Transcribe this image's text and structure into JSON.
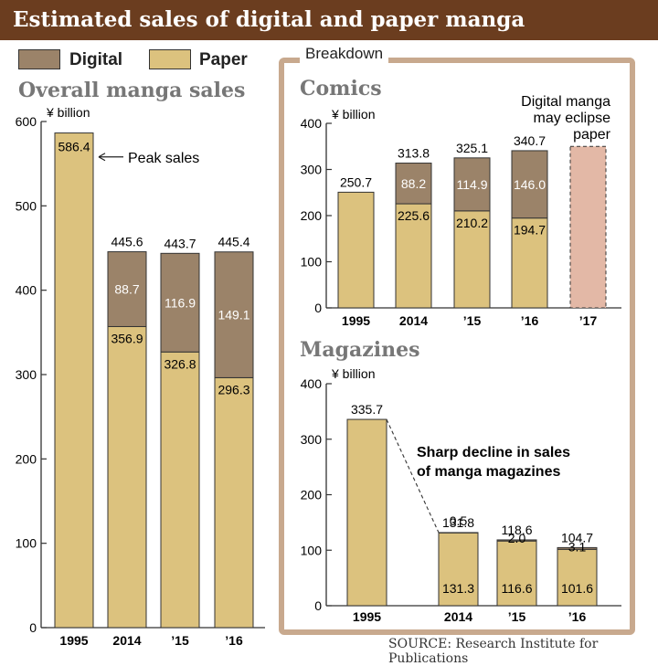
{
  "title": "Estimated sales of digital and paper manga",
  "legend": [
    {
      "label": "Digital",
      "color": "#9b8369"
    },
    {
      "label": "Paper",
      "color": "#dcc27e"
    }
  ],
  "breakdown_label": "Breakdown",
  "source": "SOURCE: Research Institute for Publications",
  "colors": {
    "digital": "#9b8369",
    "paper": "#dcc27e",
    "forecast": "#e3b8a6",
    "frame": "#c8a98e"
  },
  "chart_data": [
    {
      "id": "overall",
      "type": "bar",
      "title": "Overall manga sales",
      "ylabel": "¥ billion",
      "ylim": [
        0,
        600
      ],
      "yticks": [
        0,
        100,
        200,
        300,
        400,
        500,
        600
      ],
      "categories": [
        "1995",
        "2014",
        "’15",
        "’16"
      ],
      "series": [
        {
          "name": "Paper",
          "values": [
            586.4,
            356.9,
            326.8,
            296.3
          ]
        },
        {
          "name": "Digital",
          "values": [
            null,
            88.7,
            116.9,
            149.1
          ]
        }
      ],
      "totals": [
        null,
        445.6,
        443.7,
        445.4
      ],
      "annotations": [
        "Peak sales"
      ]
    },
    {
      "id": "comics",
      "type": "bar",
      "title": "Comics",
      "ylabel": "¥ billion",
      "ylim": [
        0,
        400
      ],
      "yticks": [
        0,
        100,
        200,
        300,
        400
      ],
      "categories": [
        "1995",
        "2014",
        "’15",
        "’16",
        "’17"
      ],
      "series": [
        {
          "name": "Paper",
          "values": [
            250.7,
            225.6,
            210.2,
            194.7,
            null
          ]
        },
        {
          "name": "Digital",
          "values": [
            null,
            88.2,
            114.9,
            146.0,
            null
          ]
        }
      ],
      "totals": [
        null,
        313.8,
        325.1,
        340.7,
        null
      ],
      "forecast": {
        "category": "’17",
        "value": 350
      },
      "annotations": [
        "Digital manga",
        "may eclipse",
        "paper"
      ]
    },
    {
      "id": "magazines",
      "type": "bar",
      "title": "Magazines",
      "ylabel": "¥ billion",
      "ylim": [
        0,
        400
      ],
      "yticks": [
        0,
        100,
        200,
        300,
        400
      ],
      "categories": [
        "1995",
        "2014",
        "’15",
        "’16"
      ],
      "series": [
        {
          "name": "Paper",
          "values": [
            335.7,
            131.3,
            116.6,
            101.6
          ]
        },
        {
          "name": "Digital",
          "values": [
            null,
            0.5,
            2.0,
            3.1
          ]
        }
      ],
      "totals": [
        null,
        131.8,
        118.6,
        104.7
      ],
      "annotations": [
        "Sharp decline in sales",
        "of manga magazines"
      ]
    }
  ]
}
